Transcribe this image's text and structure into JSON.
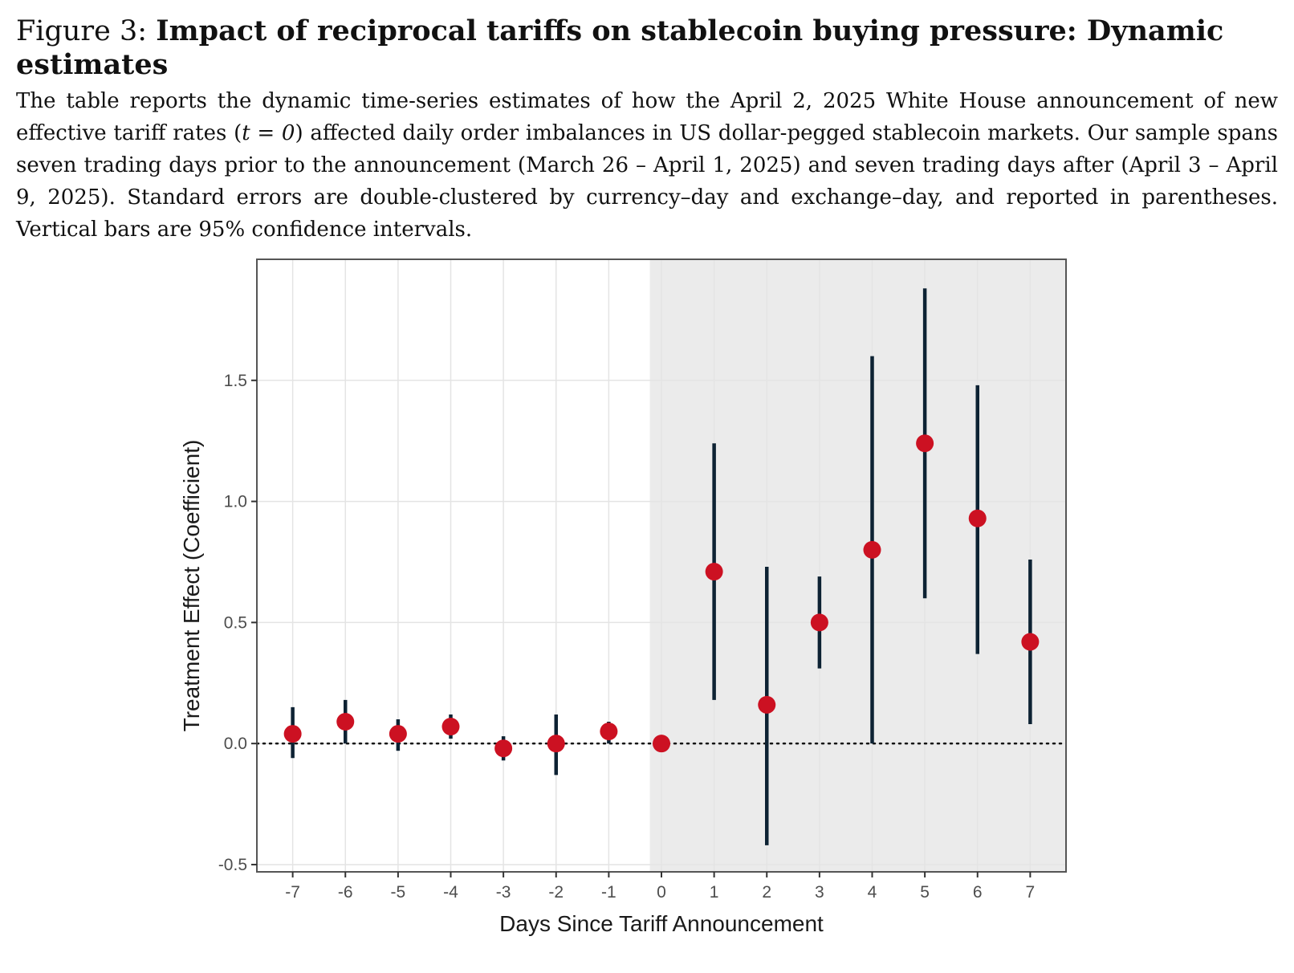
{
  "figure": {
    "label": "Figure 3:",
    "title": "Impact of reciprocal tariffs on stablecoin buying pressure: Dynamic estimates",
    "desc_part1": "The table reports the dynamic time-series estimates of how the April 2, 2025 White House announcement of new effective tariff rates (",
    "desc_math": "t = 0",
    "desc_part2": ") affected daily order imbalances in US dollar-pegged stablecoin markets. Our sample spans seven trading days prior to the announcement (March 26 – April 1, 2025) and seven trading days after (April 3 – April 9, 2025). Standard errors are double-clustered by currency–day and exchange–day, and reported in parentheses. Vertical bars are 95% confidence intervals."
  },
  "colors": {
    "point": "#cc1122",
    "errorbar": "#0d2233",
    "shade": "#ebebeb",
    "grid": "#e4e4e4",
    "panel_border": "#555555"
  },
  "chart_data": {
    "type": "scatter",
    "xlabel": "Days Since Tariff Announcement",
    "ylabel": "Treatment Effect (Coefficient)",
    "x": [
      -7,
      -6,
      -5,
      -4,
      -3,
      -2,
      -1,
      0,
      1,
      2,
      3,
      4,
      5,
      6,
      7
    ],
    "x_tick_labels": [
      "-7",
      "-6",
      "-5",
      "-4",
      "-3",
      "-2",
      "-1",
      "0",
      "1",
      "2",
      "3",
      "4",
      "5",
      "6",
      "7"
    ],
    "y_ticks": [
      -0.5,
      0.0,
      0.5,
      1.0,
      1.5
    ],
    "y_tick_labels": [
      "-0.5",
      "0.0",
      "0.5",
      "1.0",
      "1.5"
    ],
    "estimate": [
      0.04,
      0.09,
      0.04,
      0.07,
      -0.02,
      0.0,
      0.05,
      0.0,
      0.71,
      0.16,
      0.5,
      0.8,
      1.24,
      0.93,
      0.42
    ],
    "ci_low": [
      -0.06,
      0.0,
      -0.03,
      0.02,
      -0.07,
      -0.13,
      0.0,
      0.0,
      0.18,
      -0.42,
      0.31,
      0.0,
      0.6,
      0.37,
      0.08
    ],
    "ci_high": [
      0.15,
      0.18,
      0.1,
      0.12,
      0.03,
      0.12,
      0.09,
      0.0,
      1.24,
      0.73,
      0.69,
      1.6,
      1.88,
      1.48,
      0.76
    ],
    "xlim": [
      -7.68,
      7.68
    ],
    "ylim": [
      -0.53,
      2.0
    ],
    "shaded_region_x": [
      -0.22,
      7.68
    ],
    "reference_line_y": 0.0
  }
}
